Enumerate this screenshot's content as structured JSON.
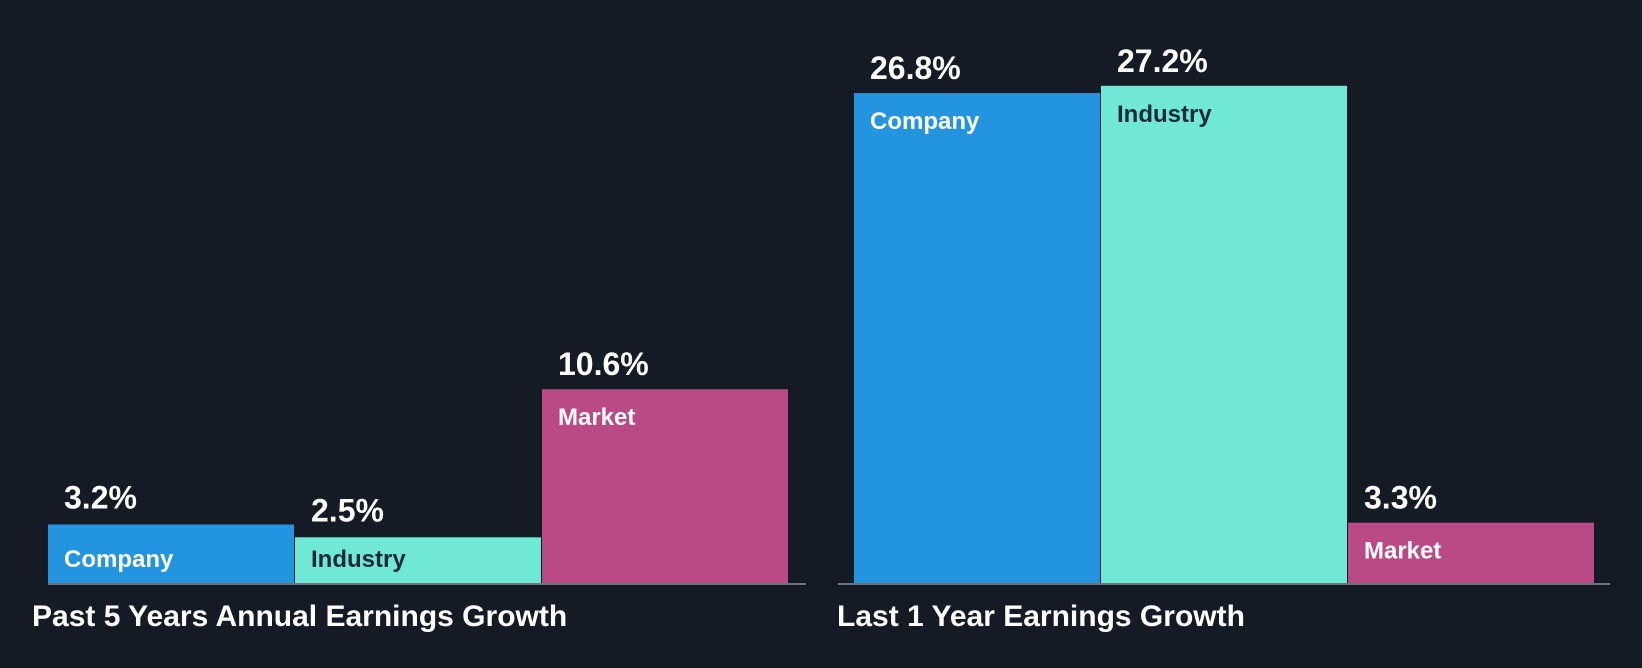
{
  "colors": {
    "background": "#151b24",
    "company": "#2394df",
    "industry": "#6fe8d6",
    "market": "#b94a86",
    "axis": "#6b7280",
    "label_light": "#ffffff",
    "label_dark": "#1e2a38"
  },
  "chart_data": [
    {
      "type": "bar",
      "title": "Past 5 Years Annual Earnings Growth",
      "categories": [
        "Company",
        "Industry",
        "Market"
      ],
      "values": [
        3.2,
        2.5,
        10.6
      ],
      "value_labels": [
        "3.2%",
        "2.5%",
        "10.6%"
      ],
      "unit": "%",
      "ylim": [
        0,
        28.5
      ]
    },
    {
      "type": "bar",
      "title": "Last 1 Year Earnings Growth",
      "categories": [
        "Company",
        "Industry",
        "Market"
      ],
      "values": [
        26.8,
        27.2,
        3.3
      ],
      "value_labels": [
        "26.8%",
        "27.2%",
        "3.3%"
      ],
      "unit": "%",
      "ylim": [
        0,
        28.5
      ]
    }
  ]
}
